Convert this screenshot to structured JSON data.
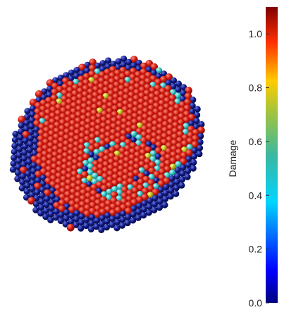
{
  "chart_data": {
    "type": "scatter",
    "colorbar": {
      "label": "Damage",
      "range": [
        0.0,
        1.1
      ],
      "ticks": [
        0.0,
        0.2,
        0.4,
        0.6,
        0.8,
        1.0
      ],
      "tick_labels": [
        "0.0",
        "0.2",
        "0.4",
        "0.6",
        "0.8",
        "1.0"
      ],
      "colormap": "jet"
    },
    "colors": {
      "damaged": "#c81a10",
      "partial": "#35c3c5",
      "undamaged": "#0b1680",
      "moderate": "#b8b81c"
    }
  }
}
